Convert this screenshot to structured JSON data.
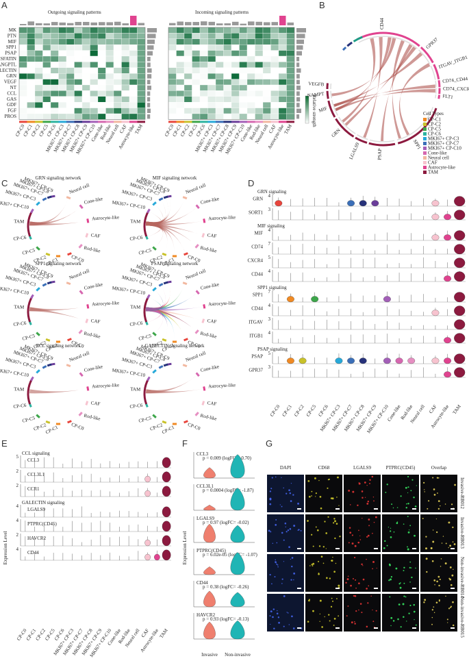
{
  "panels": {
    "A": {
      "label": "A",
      "left_title": "Outgoing signaling patterns",
      "right_title": "Incoming signaling patterns",
      "pathways": [
        "MK",
        "PTN",
        "MIF",
        "SPP1",
        "PSAP",
        "VISFATIN",
        "ANGPTL",
        "GALECTIN",
        "GRN",
        "VEGF",
        "NT",
        "CCL",
        "GAS",
        "GDF",
        "FGF",
        "PROS"
      ],
      "legend_title": "Relative strength"
    },
    "B": {
      "label": "B",
      "genes": [
        "CD44",
        "GPR37",
        "ITGAV_ITGB1",
        "CD74_CD44",
        "CD74_CXCR4",
        "FLT1",
        "SPP1",
        "PSAP",
        "LGALS9",
        "GRN",
        "MIF",
        "NAMPT",
        "VEGFB"
      ],
      "legend_title": "Cell Types",
      "legend": [
        "CP-C1",
        "CP-C2",
        "CP-C5",
        "CP-C6",
        "MKI67+ CP-C3",
        "MKI67+ CP-C7",
        "MKI67+ CP-C10",
        "Cone-like",
        "Neural cell",
        "CAF",
        "Astrocyte-like",
        "TAM"
      ]
    },
    "C": {
      "label": "C",
      "titles": [
        "GRN signaling network",
        "MIF signaling network",
        "SPP1 signaling network",
        "PSAP signaling network",
        "CCL signaling network",
        "GALECTIN signaling network"
      ],
      "nodes": [
        "MKI67+ CP-C9",
        "Neural cell",
        "Cone-like",
        "Astrocyte-like",
        "CAF",
        "Rod-like",
        "CP-C0",
        "CP-C1",
        "CP-C2",
        "CP-C5",
        "CP-C6",
        "TAM",
        "MKI67+ CP-C10",
        "MKI67+ CP-C3",
        "MKI67+ CP-C7",
        "MKI67+ CP-C8"
      ]
    },
    "D": {
      "label": "D",
      "sections": [
        {
          "title": "GRN signaling",
          "genes": [
            "GRN",
            "SORT1"
          ],
          "max": [
            4,
            3
          ]
        },
        {
          "title": "MIF signaling",
          "genes": [
            "MIF",
            "CD74",
            "CXCR4",
            "CD44"
          ],
          "max": [
            4,
            7,
            5,
            4
          ]
        },
        {
          "title": "SPP1 signaling",
          "genes": [
            "SPP1",
            "CD44",
            "ITGAV",
            "ITGB1"
          ],
          "max": [
            7,
            4,
            3,
            4
          ]
        },
        {
          "title": "PSAP signaling",
          "genes": [
            "PSAP",
            "GPR37"
          ],
          "max": [
            5,
            3
          ]
        }
      ]
    },
    "E": {
      "label": "E",
      "y_label": "Expression Level",
      "sections": [
        {
          "title": "CCL signaling",
          "genes": [
            "CCL3",
            "CCL3L1",
            "CCR1"
          ],
          "max": [
            5,
            2,
            2
          ]
        },
        {
          "title": "GALECTIN signaling",
          "genes": [
            "LGALS9",
            "PTPRC(CD45)",
            "HAVCR2",
            "CD44"
          ],
          "max": [
            4,
            4,
            2,
            4
          ]
        }
      ]
    },
    "F": {
      "label": "F",
      "y_label": "Expression Level",
      "groups": [
        "Invasive",
        "Non-invasive"
      ],
      "genes": [
        "CCL3",
        "CCL3L1",
        "LGALS9",
        "PTPRC(CD45)",
        "CD44",
        "HAVCR2"
      ],
      "stats": [
        "p = 0.009 (logFC= -0.70)",
        "p = 0.0004 (logFC= -1.87)",
        "p = 0.97 (logFC= -0.02)",
        "p = 6.02e-05 (logFC= -1.07)",
        "p = 0.38 (logFC= -0.26)",
        "p = 0.93 (logFC= -0.13)"
      ]
    },
    "G": {
      "label": "G",
      "channels": [
        "DAPI",
        "CD68",
        "LGALS9",
        "PTPRC(CD45)",
        "Overlap"
      ],
      "samples": [
        "Invasive-RB012",
        "Invasive-RB013",
        "Non-invasive-RB014",
        "Non-invasive-RB015"
      ]
    }
  },
  "cell_types": [
    "CP-C0",
    "CP-C1",
    "CP-C2",
    "CP-C5",
    "CP-C6",
    "MKI67+ CP-C3",
    "MKI67+ CP-C7",
    "MKI67+ CP-C8",
    "MKI67+ CP-C9",
    "MKI67+ CP-C10",
    "Cone-like",
    "Rod-like",
    "Neural cell",
    "CAF",
    "Astrocyte-like",
    "TAM"
  ]
}
